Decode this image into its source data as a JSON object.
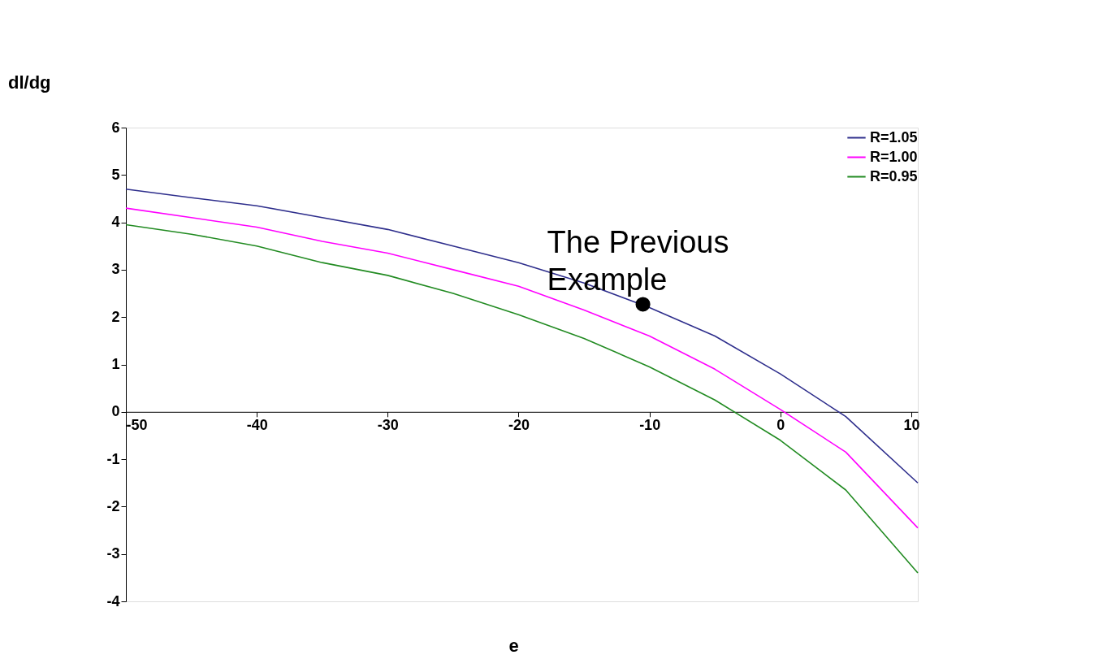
{
  "chart_data": {
    "type": "line",
    "xlabel": "e",
    "ylabel": "dl/dg",
    "x": [
      -50,
      -45,
      -40,
      -35,
      -30,
      -25,
      -20,
      -15,
      -10,
      -5,
      0,
      5,
      10.5
    ],
    "series": [
      {
        "name": "R=1.05",
        "color": "#2e2e8c",
        "values": [
          4.7,
          4.52,
          4.35,
          4.1,
          3.85,
          3.5,
          3.15,
          2.72,
          2.2,
          1.6,
          0.8,
          -0.1,
          -1.5
        ]
      },
      {
        "name": "R=1.00",
        "color": "#ff00ff",
        "values": [
          4.3,
          4.1,
          3.9,
          3.6,
          3.35,
          3.0,
          2.65,
          2.15,
          1.6,
          0.9,
          0.05,
          -0.85,
          -2.45
        ]
      },
      {
        "name": "R=0.95",
        "color": "#228b22",
        "values": [
          3.95,
          3.75,
          3.5,
          3.15,
          2.88,
          2.5,
          2.05,
          1.55,
          0.95,
          0.25,
          -0.6,
          -1.65,
          -3.4
        ]
      },
      {
        "type": "scatter",
        "marker": "circle",
        "color": "#000000",
        "x": [
          -10.5
        ],
        "values": [
          2.27
        ]
      }
    ],
    "annotations": [
      {
        "text": "The Previous\nExample",
        "x": -10.5,
        "y": 2.27
      }
    ],
    "xlim": [
      -50,
      10.5
    ],
    "xticks": [
      -50,
      -40,
      -30,
      -20,
      -10,
      0,
      10
    ],
    "ylim": [
      -4,
      6
    ],
    "yticks": [
      -4,
      -3,
      -2,
      -1,
      0,
      1,
      2,
      3,
      4,
      5,
      6
    ],
    "grid": false,
    "legend": "top right",
    "marker": "none",
    "line_style": "solid"
  }
}
